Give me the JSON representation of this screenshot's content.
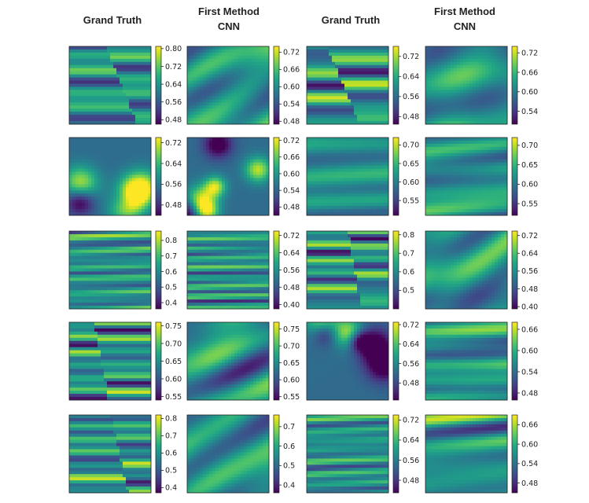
{
  "figure": {
    "column_titles": [
      [
        "Grand Truth"
      ],
      [
        "First Method",
        "CNN"
      ],
      [
        "Grand Truth"
      ],
      [
        "First Method",
        "CNN"
      ]
    ]
  },
  "colormap": [
    "#440154",
    "#482475",
    "#414487",
    "#355f8d",
    "#2a788e",
    "#21918c",
    "#22a884",
    "#44bf70",
    "#7ad151",
    "#bddf26",
    "#fde725"
  ],
  "chart_data": [
    {
      "type": "heatmap",
      "row": 1,
      "col": 1,
      "title": "Grand Truth",
      "pattern": "stripes_shift",
      "seed": 1,
      "clim": [
        0.46,
        0.81
      ],
      "colorbar_ticks": [
        "0.80",
        "0.72",
        "0.64",
        "0.56",
        "0.48"
      ]
    },
    {
      "type": "heatmap",
      "row": 1,
      "col": 2,
      "title": "First Method CNN",
      "pattern": "smooth",
      "seed": 2,
      "clim": [
        0.47,
        0.74
      ],
      "colorbar_ticks": [
        "0.72",
        "0.66",
        "0.60",
        "0.54",
        "0.48"
      ]
    },
    {
      "type": "heatmap",
      "row": 1,
      "col": 3,
      "title": "Grand Truth",
      "pattern": "stripes_shift",
      "seed": 3,
      "clim": [
        0.45,
        0.76
      ],
      "colorbar_ticks": [
        "0.72",
        "0.64",
        "0.56",
        "0.48"
      ]
    },
    {
      "type": "heatmap",
      "row": 1,
      "col": 4,
      "title": "First Method CNN",
      "pattern": "smooth",
      "seed": 4,
      "clim": [
        0.5,
        0.74
      ],
      "colorbar_ticks": [
        "0.72",
        "0.66",
        "0.60",
        "0.54"
      ]
    },
    {
      "type": "heatmap",
      "row": 2,
      "col": 1,
      "title": "Grand Truth",
      "pattern": "blobs",
      "seed": 5,
      "clim": [
        0.44,
        0.74
      ],
      "colorbar_ticks": [
        "0.72",
        "0.64",
        "0.56",
        "0.48"
      ]
    },
    {
      "type": "heatmap",
      "row": 2,
      "col": 2,
      "title": "First Method CNN",
      "pattern": "blobs",
      "seed": 6,
      "clim": [
        0.45,
        0.73
      ],
      "colorbar_ticks": [
        "0.72",
        "0.66",
        "0.60",
        "0.54",
        "0.48"
      ]
    },
    {
      "type": "heatmap",
      "row": 2,
      "col": 3,
      "title": "Grand Truth",
      "pattern": "stripes",
      "seed": 7,
      "clim": [
        0.51,
        0.72
      ],
      "colorbar_ticks": [
        "0.70",
        "0.65",
        "0.60",
        "0.55"
      ]
    },
    {
      "type": "heatmap",
      "row": 2,
      "col": 4,
      "title": "First Method CNN",
      "pattern": "stripes",
      "seed": 8,
      "clim": [
        0.52,
        0.72
      ],
      "colorbar_ticks": [
        "0.70",
        "0.65",
        "0.60",
        "0.55"
      ]
    },
    {
      "type": "heatmap",
      "row": 3,
      "col": 1,
      "title": "Grand Truth",
      "pattern": "fine_stripes",
      "seed": 9,
      "clim": [
        0.36,
        0.86
      ],
      "colorbar_ticks": [
        "0.8",
        "0.7",
        "0.6",
        "0.5",
        "0.4"
      ]
    },
    {
      "type": "heatmap",
      "row": 3,
      "col": 2,
      "title": "First Method CNN",
      "pattern": "fine_stripes",
      "seed": 10,
      "clim": [
        0.38,
        0.74
      ],
      "colorbar_ticks": [
        "0.72",
        "0.64",
        "0.56",
        "0.48",
        "0.40"
      ]
    },
    {
      "type": "heatmap",
      "row": 3,
      "col": 3,
      "title": "Grand Truth",
      "pattern": "stripes_shift",
      "seed": 11,
      "clim": [
        0.4,
        0.82
      ],
      "colorbar_ticks": [
        "0.8",
        "0.7",
        "0.6",
        "0.5"
      ]
    },
    {
      "type": "heatmap",
      "row": 3,
      "col": 4,
      "title": "First Method CNN",
      "pattern": "smooth",
      "seed": 12,
      "clim": [
        0.39,
        0.74
      ],
      "colorbar_ticks": [
        "0.72",
        "0.64",
        "0.56",
        "0.48",
        "0.40"
      ]
    },
    {
      "type": "heatmap",
      "row": 4,
      "col": 1,
      "title": "Grand Truth",
      "pattern": "stripes_shift",
      "seed": 13,
      "clim": [
        0.54,
        0.76
      ],
      "colorbar_ticks": [
        "0.75",
        "0.70",
        "0.65",
        "0.60",
        "0.55"
      ]
    },
    {
      "type": "heatmap",
      "row": 4,
      "col": 2,
      "title": "First Method CNN",
      "pattern": "smooth",
      "seed": 14,
      "clim": [
        0.54,
        0.77
      ],
      "colorbar_ticks": [
        "0.75",
        "0.70",
        "0.65",
        "0.60",
        "0.55"
      ]
    },
    {
      "type": "heatmap",
      "row": 4,
      "col": 3,
      "title": "Grand Truth",
      "pattern": "blobs",
      "seed": 15,
      "clim": [
        0.41,
        0.73
      ],
      "colorbar_ticks": [
        "0.72",
        "0.64",
        "0.56",
        "0.48"
      ]
    },
    {
      "type": "heatmap",
      "row": 4,
      "col": 4,
      "title": "First Method CNN",
      "pattern": "stripes",
      "seed": 16,
      "clim": [
        0.46,
        0.68
      ],
      "colorbar_ticks": [
        "0.66",
        "0.60",
        "0.54",
        "0.48"
      ]
    },
    {
      "type": "heatmap",
      "row": 5,
      "col": 1,
      "title": "Grand Truth",
      "pattern": "stripes_shift",
      "seed": 17,
      "clim": [
        0.37,
        0.82
      ],
      "colorbar_ticks": [
        "0.8",
        "0.7",
        "0.6",
        "0.5",
        "0.4"
      ]
    },
    {
      "type": "heatmap",
      "row": 5,
      "col": 2,
      "title": "First Method CNN",
      "pattern": "smooth",
      "seed": 18,
      "clim": [
        0.36,
        0.76
      ],
      "colorbar_ticks": [
        "0.7",
        "0.6",
        "0.5",
        "0.4"
      ]
    },
    {
      "type": "heatmap",
      "row": 5,
      "col": 3,
      "title": "Grand Truth",
      "pattern": "fine_stripes",
      "seed": 19,
      "clim": [
        0.43,
        0.74
      ],
      "colorbar_ticks": [
        "0.72",
        "0.64",
        "0.56",
        "0.48"
      ]
    },
    {
      "type": "heatmap",
      "row": 5,
      "col": 4,
      "title": "First Method CNN",
      "pattern": "stripes",
      "seed": 20,
      "clim": [
        0.45,
        0.69
      ],
      "colorbar_ticks": [
        "0.66",
        "0.60",
        "0.54",
        "0.48"
      ]
    }
  ]
}
